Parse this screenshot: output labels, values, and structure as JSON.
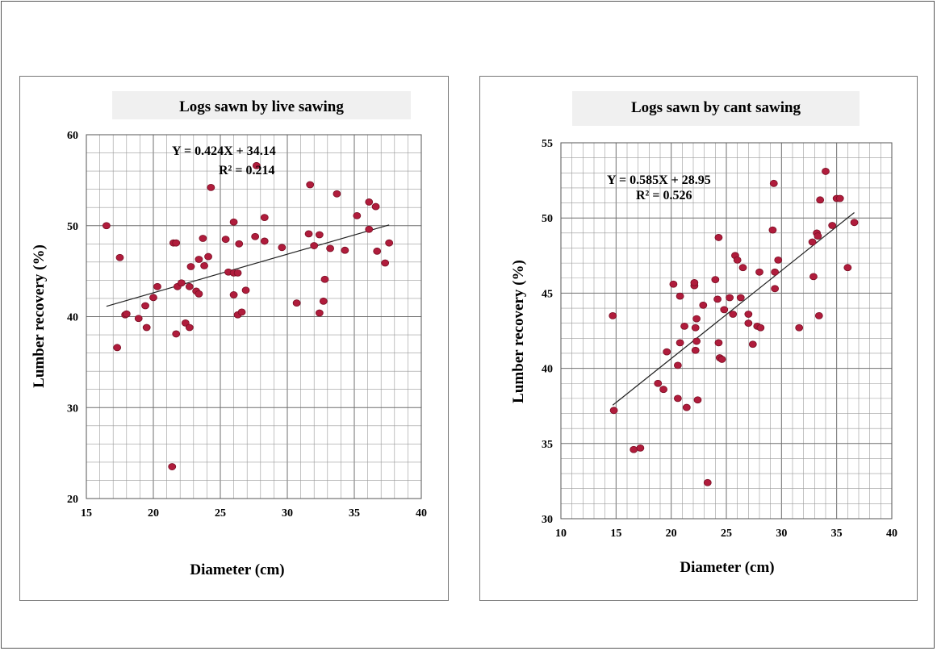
{
  "chart_data": [
    {
      "type": "scatter",
      "title": "Logs sawn by live sawing",
      "xlabel": "Diameter (cm)",
      "ylabel": "Lumber recovery (%)",
      "xlim": [
        15,
        40
      ],
      "ylim": [
        20,
        60
      ],
      "xticks": [
        "15",
        "20",
        "25",
        "30",
        "35",
        "40"
      ],
      "yticks": [
        "20",
        "30",
        "40",
        "50",
        "60"
      ],
      "grid": true,
      "annotation": {
        "equation": "Y = 0.424X + 34.14",
        "r2": "R² = 0.214"
      },
      "trendline": {
        "slope": 0.424,
        "intercept": 34.14,
        "x_from": 16.5,
        "x_to": 37.6
      },
      "points": [
        [
          16.5,
          50.0
        ],
        [
          17.3,
          36.6
        ],
        [
          17.5,
          46.5
        ],
        [
          17.9,
          40.2
        ],
        [
          18.0,
          40.3
        ],
        [
          18.9,
          39.8
        ],
        [
          19.4,
          41.2
        ],
        [
          19.5,
          38.8
        ],
        [
          20.0,
          42.1
        ],
        [
          20.3,
          43.3
        ],
        [
          21.4,
          23.5
        ],
        [
          21.5,
          48.1
        ],
        [
          21.7,
          48.1
        ],
        [
          21.7,
          38.1
        ],
        [
          21.8,
          43.3
        ],
        [
          22.1,
          43.7
        ],
        [
          22.4,
          39.3
        ],
        [
          22.7,
          43.3
        ],
        [
          22.7,
          38.8
        ],
        [
          22.8,
          45.5
        ],
        [
          23.2,
          42.8
        ],
        [
          23.4,
          42.5
        ],
        [
          23.4,
          46.3
        ],
        [
          23.7,
          48.6
        ],
        [
          23.8,
          45.6
        ],
        [
          24.1,
          46.6
        ],
        [
          24.3,
          54.2
        ],
        [
          25.4,
          48.5
        ],
        [
          25.6,
          44.9
        ],
        [
          26.0,
          50.4
        ],
        [
          26.0,
          44.8
        ],
        [
          26.0,
          42.4
        ],
        [
          26.3,
          40.2
        ],
        [
          26.3,
          44.8
        ],
        [
          26.4,
          48.0
        ],
        [
          26.6,
          40.5
        ],
        [
          26.9,
          42.9
        ],
        [
          27.6,
          48.8
        ],
        [
          27.7,
          56.6
        ],
        [
          28.3,
          48.3
        ],
        [
          28.3,
          50.9
        ],
        [
          29.6,
          47.6
        ],
        [
          30.7,
          41.5
        ],
        [
          31.6,
          49.1
        ],
        [
          31.7,
          54.5
        ],
        [
          32.0,
          47.8
        ],
        [
          32.4,
          40.4
        ],
        [
          32.4,
          49.0
        ],
        [
          32.7,
          41.7
        ],
        [
          32.8,
          44.1
        ],
        [
          33.2,
          47.5
        ],
        [
          33.7,
          53.5
        ],
        [
          34.3,
          47.3
        ],
        [
          35.2,
          51.1
        ],
        [
          36.1,
          49.6
        ],
        [
          36.1,
          52.6
        ],
        [
          36.6,
          52.1
        ],
        [
          36.7,
          47.2
        ],
        [
          37.3,
          45.9
        ],
        [
          37.6,
          48.1
        ]
      ]
    },
    {
      "type": "scatter",
      "title": "Logs sawn by cant sawing",
      "xlabel": "Diameter (cm)",
      "ylabel": "Lumber recovery (%)",
      "xlim": [
        10,
        40
      ],
      "ylim": [
        30,
        55
      ],
      "xticks": [
        "10",
        "15",
        "20",
        "25",
        "30",
        "35",
        "40"
      ],
      "yticks": [
        "30",
        "35",
        "40",
        "45",
        "50",
        "55"
      ],
      "grid": true,
      "annotation": {
        "equation": "Y = 0.585X + 28.95",
        "r2": "R² = 0.526"
      },
      "trendline": {
        "slope": 0.585,
        "intercept": 28.95,
        "x_from": 14.7,
        "x_to": 36.6
      },
      "points": [
        [
          14.7,
          43.5
        ],
        [
          14.8,
          37.2
        ],
        [
          16.6,
          34.6
        ],
        [
          17.2,
          34.7
        ],
        [
          18.8,
          39.0
        ],
        [
          19.3,
          38.6
        ],
        [
          19.6,
          41.1
        ],
        [
          20.2,
          45.6
        ],
        [
          20.6,
          40.2
        ],
        [
          20.6,
          38.0
        ],
        [
          20.8,
          44.8
        ],
        [
          20.8,
          41.7
        ],
        [
          21.2,
          42.8
        ],
        [
          21.4,
          37.4
        ],
        [
          22.1,
          45.5
        ],
        [
          22.1,
          45.7
        ],
        [
          22.2,
          42.7
        ],
        [
          22.2,
          41.2
        ],
        [
          22.3,
          43.3
        ],
        [
          22.3,
          41.8
        ],
        [
          22.4,
          37.9
        ],
        [
          22.9,
          44.2
        ],
        [
          23.3,
          32.4
        ],
        [
          24.0,
          45.9
        ],
        [
          24.2,
          44.6
        ],
        [
          24.3,
          48.7
        ],
        [
          24.3,
          41.7
        ],
        [
          24.4,
          40.7
        ],
        [
          24.6,
          40.6
        ],
        [
          24.8,
          43.9
        ],
        [
          25.3,
          44.7
        ],
        [
          25.6,
          43.6
        ],
        [
          25.8,
          47.5
        ],
        [
          26.0,
          47.2
        ],
        [
          26.3,
          44.7
        ],
        [
          26.5,
          46.7
        ],
        [
          27.0,
          43.6
        ],
        [
          27.0,
          43.0
        ],
        [
          27.4,
          41.6
        ],
        [
          27.8,
          42.8
        ],
        [
          28.0,
          46.4
        ],
        [
          28.1,
          42.7
        ],
        [
          29.2,
          49.2
        ],
        [
          29.3,
          52.3
        ],
        [
          29.4,
          46.4
        ],
        [
          29.4,
          45.3
        ],
        [
          29.7,
          47.2
        ],
        [
          31.6,
          42.7
        ],
        [
          32.8,
          48.4
        ],
        [
          32.9,
          46.1
        ],
        [
          33.2,
          49.0
        ],
        [
          33.3,
          48.8
        ],
        [
          33.4,
          43.5
        ],
        [
          33.5,
          51.2
        ],
        [
          34.0,
          53.1
        ],
        [
          34.6,
          49.5
        ],
        [
          35.0,
          51.3
        ],
        [
          35.3,
          51.3
        ],
        [
          36.0,
          46.7
        ],
        [
          36.6,
          49.7
        ]
      ]
    }
  ],
  "colors": {
    "point": "#b01c3c",
    "point_stroke": "#7a0f24",
    "grid": "#9a9a9a",
    "trendline": "#222222"
  }
}
